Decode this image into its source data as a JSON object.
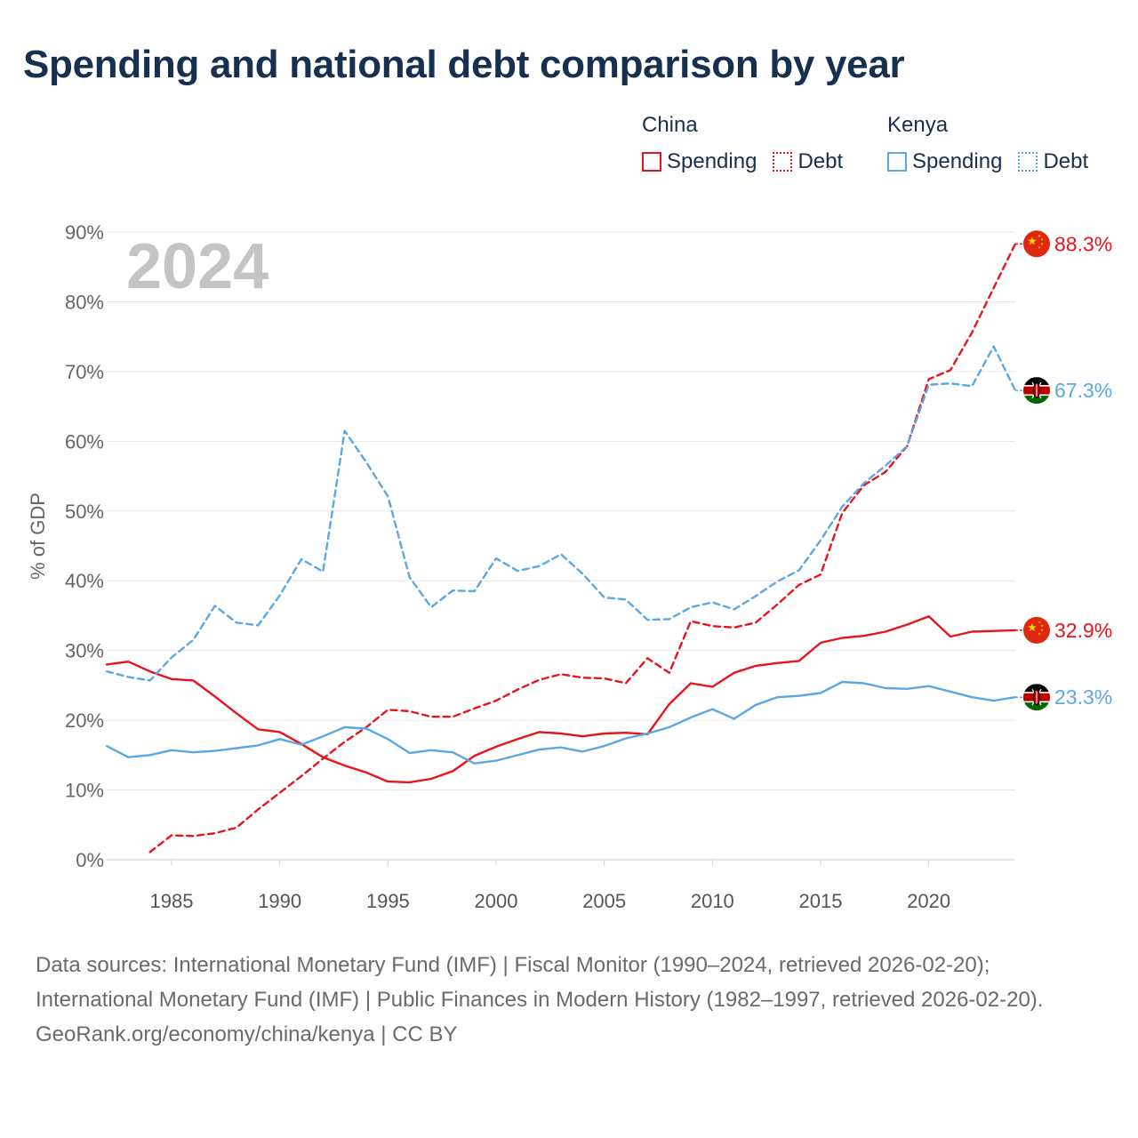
{
  "page": {
    "title": "Spending and national debt comparison by year",
    "source_text": "Data sources: International Monetary Fund (IMF) | Fiscal Monitor (1990–2024, retrieved 2026-02-20); International Monetary Fund (IMF) | Public Finances in Modern History (1982–1997, retrieved 2026-02-20).",
    "credit_text": "GeoRank.org/economy/china/kenya | CC BY"
  },
  "legend": {
    "china": {
      "name": "China",
      "spending": "Spending",
      "debt": "Debt"
    },
    "kenya": {
      "name": "Kenya",
      "spending": "Spending",
      "debt": "Debt"
    }
  },
  "colors": {
    "china": "#e8141b",
    "kenya": "#5aa7e6"
  },
  "flags": {
    "china": "china-flag-icon",
    "kenya": "kenya-flag-icon"
  },
  "chart_data": {
    "type": "line",
    "title": "Spending and national debt comparison by year",
    "year_label": "2024",
    "xlabel": "",
    "ylabel": "% of GDP",
    "xlim": [
      1982,
      2024
    ],
    "ylim": [
      0,
      90
    ],
    "x_ticks": [
      1985,
      1990,
      1995,
      2000,
      2005,
      2010,
      2015,
      2020
    ],
    "y_ticks": [
      0,
      10,
      20,
      30,
      40,
      50,
      60,
      70,
      80,
      90
    ],
    "y_tick_labels": [
      "0%",
      "10%",
      "20%",
      "30%",
      "40%",
      "50%",
      "60%",
      "70%",
      "80%",
      "90%"
    ],
    "series": [
      {
        "name": "China Spending",
        "country": "china",
        "style": "solid",
        "end_label": "32.9%",
        "x": [
          1982,
          1983,
          1984,
          1985,
          1986,
          1987,
          1988,
          1989,
          1990,
          1991,
          1992,
          1993,
          1994,
          1995,
          1996,
          1997,
          1998,
          1999,
          2000,
          2001,
          2002,
          2003,
          2004,
          2005,
          2006,
          2007,
          2008,
          2009,
          2010,
          2011,
          2012,
          2013,
          2014,
          2015,
          2016,
          2017,
          2018,
          2019,
          2020,
          2021,
          2022,
          2023,
          2024
        ],
        "values": [
          28.0,
          28.4,
          27.0,
          25.9,
          25.7,
          23.4,
          21.0,
          18.7,
          18.3,
          16.6,
          14.7,
          13.5,
          12.5,
          11.2,
          11.1,
          11.6,
          12.7,
          14.9,
          16.2,
          17.3,
          18.3,
          18.1,
          17.7,
          18.1,
          18.2,
          18.0,
          22.3,
          25.3,
          24.8,
          26.8,
          27.8,
          28.2,
          28.5,
          31.1,
          31.8,
          32.1,
          32.7,
          33.7,
          34.9,
          32.0,
          32.7,
          32.8,
          32.9
        ]
      },
      {
        "name": "China Debt",
        "country": "china",
        "style": "dashed",
        "end_label": "88.3%",
        "x": [
          1984,
          1985,
          1986,
          1987,
          1988,
          1989,
          1990,
          1991,
          1992,
          1993,
          1994,
          1995,
          1996,
          1997,
          1998,
          1999,
          2000,
          2001,
          2002,
          2003,
          2004,
          2005,
          2006,
          2007,
          2008,
          2009,
          2010,
          2011,
          2012,
          2013,
          2014,
          2015,
          2016,
          2017,
          2018,
          2019,
          2020,
          2021,
          2022,
          2023,
          2024
        ],
        "values": [
          1.1,
          3.5,
          3.4,
          3.8,
          4.6,
          7.2,
          9.6,
          12.0,
          14.5,
          16.9,
          19.0,
          21.5,
          21.3,
          20.5,
          20.5,
          21.7,
          22.8,
          24.4,
          25.8,
          26.6,
          26.1,
          26.0,
          25.3,
          28.9,
          26.8,
          34.2,
          33.5,
          33.3,
          34.0,
          36.6,
          39.4,
          40.9,
          49.7,
          53.7,
          55.6,
          59.3,
          68.9,
          70.2,
          75.6,
          82.0,
          88.3
        ]
      },
      {
        "name": "Kenya Spending",
        "country": "kenya",
        "style": "solid",
        "end_label": "23.3%",
        "x": [
          1982,
          1983,
          1984,
          1985,
          1986,
          1987,
          1988,
          1989,
          1990,
          1991,
          1992,
          1993,
          1994,
          1995,
          1996,
          1997,
          1998,
          1999,
          2000,
          2001,
          2002,
          2003,
          2004,
          2005,
          2006,
          2007,
          2008,
          2009,
          2010,
          2011,
          2012,
          2013,
          2014,
          2015,
          2016,
          2017,
          2018,
          2019,
          2020,
          2021,
          2022,
          2023,
          2024
        ],
        "values": [
          16.3,
          14.7,
          15.0,
          15.7,
          15.4,
          15.6,
          16.0,
          16.4,
          17.3,
          16.5,
          17.7,
          19.0,
          18.8,
          17.3,
          15.3,
          15.7,
          15.4,
          13.8,
          14.2,
          15.0,
          15.8,
          16.1,
          15.5,
          16.3,
          17.4,
          18.1,
          19.0,
          20.4,
          21.6,
          20.2,
          22.2,
          23.3,
          23.5,
          23.9,
          25.5,
          25.3,
          24.6,
          24.5,
          24.9,
          24.1,
          23.3,
          22.8,
          23.3
        ]
      },
      {
        "name": "Kenya Debt",
        "country": "kenya",
        "style": "dashed",
        "end_label": "67.3%",
        "x": [
          1982,
          1983,
          1984,
          1985,
          1986,
          1987,
          1988,
          1989,
          1990,
          1991,
          1992,
          1993,
          1994,
          1995,
          1996,
          1997,
          1998,
          1999,
          2000,
          2001,
          2002,
          2003,
          2004,
          2005,
          2006,
          2007,
          2008,
          2009,
          2010,
          2011,
          2012,
          2013,
          2014,
          2015,
          2016,
          2017,
          2018,
          2019,
          2020,
          2021,
          2022,
          2023,
          2024
        ],
        "values": [
          27.0,
          26.2,
          25.7,
          29.0,
          31.5,
          36.4,
          34.0,
          33.6,
          37.9,
          43.1,
          41.3,
          61.5,
          57.0,
          52.1,
          40.5,
          36.2,
          38.6,
          38.5,
          43.2,
          41.4,
          42.1,
          43.8,
          41.0,
          37.6,
          37.3,
          34.4,
          34.5,
          36.2,
          36.9,
          35.9,
          37.8,
          39.9,
          41.5,
          45.8,
          50.6,
          54.0,
          56.5,
          59.3,
          68.1,
          68.3,
          67.9,
          73.6,
          67.3
        ]
      }
    ]
  }
}
